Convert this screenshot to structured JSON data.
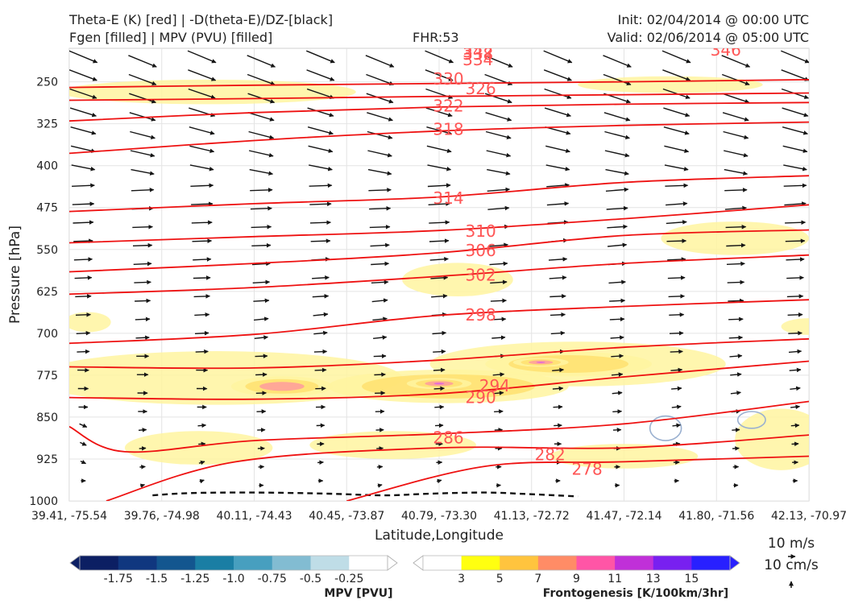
{
  "header": {
    "title_left_1": "Theta-E (K) [red] | -D(theta-E)/DZ-[black]",
    "title_left_2": "Fgen [filled] | MPV (PVU) [filled]",
    "title_center": "FHR:53",
    "title_right_1": "Init: 02/04/2014 @ 00:00 UTC",
    "title_right_2": "Valid: 02/06/2014 @ 05:00 UTC"
  },
  "chart_data": {
    "type": "cross-section",
    "xlabel": "Latitude,Longitude",
    "ylabel": "Pressure [hPa]",
    "x_ticks": [
      "39.41, -75.54",
      "39.76, -74.98",
      "40.11, -74.43",
      "40.45, -73.87",
      "40.79, -73.30",
      "41.13, -72.72",
      "41.47, -72.14",
      "41.80, -71.56",
      "42.13, -70.97"
    ],
    "y_ticks": [
      250,
      325,
      400,
      475,
      550,
      625,
      700,
      775,
      850,
      925,
      1000
    ],
    "y_range": [
      190,
      1000
    ],
    "theta_e_labels": [
      {
        "value": "346",
        "x": 7.1,
        "p": 193
      },
      {
        "value": "342",
        "x": 4.42,
        "p": 196
      },
      {
        "value": "338",
        "x": 4.42,
        "p": 200
      },
      {
        "value": "334",
        "x": 4.42,
        "p": 210
      },
      {
        "value": "330",
        "x": 4.1,
        "p": 245
      },
      {
        "value": "326",
        "x": 4.45,
        "p": 262
      },
      {
        "value": "322",
        "x": 4.1,
        "p": 293
      },
      {
        "value": "318",
        "x": 4.1,
        "p": 335
      },
      {
        "value": "314",
        "x": 4.1,
        "p": 458
      },
      {
        "value": "310",
        "x": 4.45,
        "p": 517
      },
      {
        "value": "306",
        "x": 4.45,
        "p": 552
      },
      {
        "value": "302",
        "x": 4.45,
        "p": 596
      },
      {
        "value": "298",
        "x": 4.45,
        "p": 667
      },
      {
        "value": "294",
        "x": 4.6,
        "p": 794
      },
      {
        "value": "290",
        "x": 4.45,
        "p": 815
      },
      {
        "value": "286",
        "x": 4.1,
        "p": 887
      },
      {
        "value": "282",
        "x": 5.2,
        "p": 917
      },
      {
        "value": "278",
        "x": 5.6,
        "p": 943
      }
    ],
    "theta_e_lines": [
      {
        "x": [
          0,
          2,
          4,
          6,
          8
        ],
        "p": [
          260,
          256,
          253,
          250,
          246
        ]
      },
      {
        "x": [
          0,
          2,
          4,
          6,
          8
        ],
        "p": [
          283,
          280,
          276,
          273,
          270
        ]
      },
      {
        "x": [
          0,
          2,
          4,
          6,
          8
        ],
        "p": [
          320,
          305,
          295,
          290,
          287
        ]
      },
      {
        "x": [
          0,
          2,
          4,
          6,
          8
        ],
        "p": [
          378,
          355,
          338,
          328,
          322
        ]
      },
      {
        "x": [
          0,
          2,
          4,
          6,
          8
        ],
        "p": [
          482,
          468,
          456,
          430,
          418
        ]
      },
      {
        "x": [
          0,
          2,
          4,
          6,
          8
        ],
        "p": [
          538,
          527,
          516,
          495,
          470
        ]
      },
      {
        "x": [
          0,
          2,
          4,
          6,
          8
        ],
        "p": [
          590,
          575,
          556,
          525,
          515
        ]
      },
      {
        "x": [
          0,
          2,
          4,
          6,
          8
        ],
        "p": [
          630,
          618,
          598,
          575,
          560
        ]
      },
      {
        "x": [
          0,
          2,
          4,
          6,
          8
        ],
        "p": [
          718,
          702,
          668,
          652,
          640
        ]
      },
      {
        "x": [
          0,
          2,
          4,
          6,
          8
        ],
        "p": [
          760,
          762,
          748,
          725,
          710
        ]
      },
      {
        "x": [
          0,
          2,
          4,
          6,
          8
        ],
        "p": [
          815,
          818,
          808,
          778,
          750
        ]
      },
      {
        "x": [
          0,
          0.6,
          2,
          4,
          6,
          8
        ],
        "p": [
          867,
          912,
          892,
          880,
          862,
          822
        ]
      },
      {
        "x": [
          0.4,
          1.8,
          4,
          6,
          8
        ],
        "p": [
          1000,
          930,
          905,
          905,
          882
        ]
      },
      {
        "x": [
          3,
          4.5,
          6,
          8
        ],
        "p": [
          1000,
          938,
          930,
          920
        ]
      }
    ],
    "stability_line": {
      "x": [
        0.9,
        1.3,
        2.0,
        2.8,
        3.4,
        3.9,
        4.5,
        5.0,
        5.5
      ],
      "p": [
        990,
        986,
        985,
        987,
        990,
        987,
        985,
        988,
        992
      ]
    },
    "fgen_blobs": [
      {
        "x": 1.6,
        "p": 780,
        "rx": 2.0,
        "rp": 48,
        "level": 1
      },
      {
        "x": 2.3,
        "p": 795,
        "rx": 0.55,
        "rp": 18,
        "level": 3
      },
      {
        "x": 4.1,
        "p": 795,
        "rx": 1.3,
        "rp": 30,
        "level": 2
      },
      {
        "x": 4.0,
        "p": 790,
        "rx": 0.35,
        "rp": 10,
        "level": 4
      },
      {
        "x": 5.5,
        "p": 755,
        "rx": 1.6,
        "rp": 40,
        "level": 1
      },
      {
        "x": 5.4,
        "p": 755,
        "rx": 0.9,
        "rp": 22,
        "level": 2
      },
      {
        "x": 5.1,
        "p": 752,
        "rx": 0.3,
        "rp": 8,
        "level": 4
      },
      {
        "x": 1.5,
        "p": 268,
        "rx": 1.6,
        "rp": 22,
        "level": 1
      },
      {
        "x": 6.5,
        "p": 255,
        "rx": 1.0,
        "rp": 15,
        "level": 1
      },
      {
        "x": 4.2,
        "p": 604,
        "rx": 0.6,
        "rp": 30,
        "level": 1
      },
      {
        "x": 7.2,
        "p": 530,
        "rx": 0.8,
        "rp": 30,
        "level": 1
      },
      {
        "x": 7.7,
        "p": 890,
        "rx": 0.5,
        "rp": 55,
        "level": 1
      },
      {
        "x": 1.4,
        "p": 905,
        "rx": 0.8,
        "rp": 30,
        "level": 1
      },
      {
        "x": 3.5,
        "p": 900,
        "rx": 0.9,
        "rp": 25,
        "level": 1
      },
      {
        "x": 6.0,
        "p": 920,
        "rx": 0.8,
        "rp": 22,
        "level": 1
      },
      {
        "x": 8.0,
        "p": 688,
        "rx": 0.3,
        "rp": 15,
        "level": 1
      },
      {
        "x": 0.2,
        "p": 680,
        "rx": 0.25,
        "rp": 18,
        "level": 1
      }
    ],
    "mpv_outlines": [
      {
        "x": 6.45,
        "p": 870,
        "rx": 0.17,
        "rp": 22
      },
      {
        "x": 7.38,
        "p": 855,
        "rx": 0.15,
        "rp": 15
      }
    ],
    "mpv_legend": {
      "label": "MPV [PVU]",
      "ticks": [
        "-1.75",
        "-1.5",
        "-1.25",
        "-1.0",
        "-0.75",
        "-0.5",
        "-0.25"
      ],
      "colors": [
        "#0c1f63",
        "#10377f",
        "#13568f",
        "#1a7ea4",
        "#479fbf",
        "#82bcd2",
        "#bfdde7",
        "#ffffff"
      ]
    },
    "fgen_legend": {
      "label": "Frontogenesis [K/100km/3hr]",
      "ticks": [
        "3",
        "5",
        "7",
        "9",
        "11",
        "13",
        "15"
      ],
      "colors": [
        "#ffffff",
        "#ffff10",
        "#ffc43e",
        "#ff8c66",
        "#ff55a6",
        "#c030d8",
        "#7820f0",
        "#2820ff"
      ]
    },
    "vector_key": {
      "label_top": "10 m/s",
      "label_bottom": "10 cm/s"
    },
    "colors": {
      "theta_e": "#ee1111",
      "theta_e_label": "#ff5555",
      "stability": "#111111",
      "vectors": "#151515"
    }
  }
}
